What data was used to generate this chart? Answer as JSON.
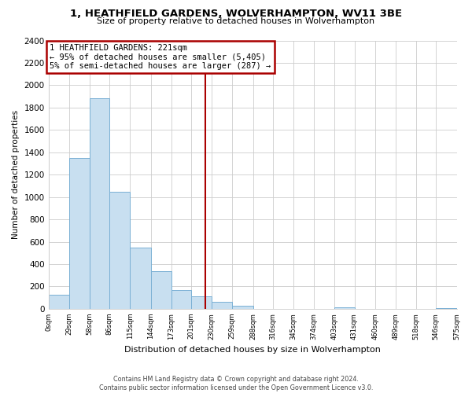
{
  "title": "1, HEATHFIELD GARDENS, WOLVERHAMPTON, WV11 3BE",
  "subtitle": "Size of property relative to detached houses in Wolverhampton",
  "xlabel": "Distribution of detached houses by size in Wolverhampton",
  "ylabel": "Number of detached properties",
  "bar_color": "#c8dff0",
  "bar_edge_color": "#7ab0d4",
  "bin_edges": [
    0,
    29,
    58,
    86,
    115,
    144,
    173,
    201,
    230,
    259,
    288,
    316,
    345,
    374,
    403,
    431,
    460,
    489,
    518,
    546,
    575
  ],
  "bar_heights": [
    125,
    1350,
    1880,
    1050,
    550,
    340,
    165,
    110,
    60,
    25,
    0,
    0,
    0,
    0,
    15,
    0,
    0,
    0,
    0,
    10
  ],
  "tick_labels": [
    "0sqm",
    "29sqm",
    "58sqm",
    "86sqm",
    "115sqm",
    "144sqm",
    "173sqm",
    "201sqm",
    "230sqm",
    "259sqm",
    "288sqm",
    "316sqm",
    "345sqm",
    "374sqm",
    "403sqm",
    "431sqm",
    "460sqm",
    "489sqm",
    "518sqm",
    "546sqm",
    "575sqm"
  ],
  "ylim": [
    0,
    2400
  ],
  "yticks": [
    0,
    200,
    400,
    600,
    800,
    1000,
    1200,
    1400,
    1600,
    1800,
    2000,
    2200,
    2400
  ],
  "vline_x": 221,
  "vline_color": "#aa0000",
  "annotation_title": "1 HEATHFIELD GARDENS: 221sqm",
  "annotation_line1": "← 95% of detached houses are smaller (5,405)",
  "annotation_line2": "5% of semi-detached houses are larger (287) →",
  "annotation_box_color": "#ffffff",
  "annotation_box_edge": "#aa0000",
  "footer_line1": "Contains HM Land Registry data © Crown copyright and database right 2024.",
  "footer_line2": "Contains public sector information licensed under the Open Government Licence v3.0.",
  "background_color": "#ffffff",
  "grid_color": "#cccccc"
}
